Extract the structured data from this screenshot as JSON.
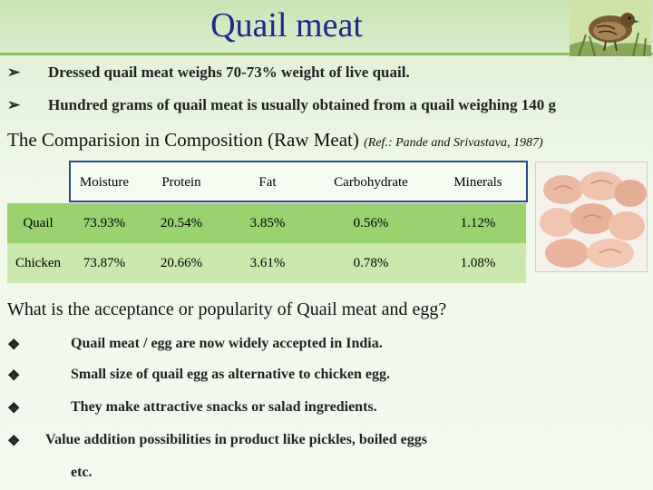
{
  "title": "Quail meat",
  "intro_bullets": [
    {
      "icon": "arrow-bullet-icon",
      "text": "Dressed quail meat weighs 70-73% weight of live quail."
    },
    {
      "icon": "arrow-bullet-icon",
      "text": "Hundred grams of quail meat is usually obtained from a quail weighing 140 g"
    }
  ],
  "comparison": {
    "heading": "The Comparision in Composition (Raw Meat)",
    "reference": "(Ref.: Pande and Srivastava, 1987)",
    "columns": [
      "Moisture",
      "Protein",
      "Fat",
      "Carbohydrate",
      "Minerals"
    ],
    "rows": [
      {
        "label": "Quail",
        "values": [
          "73.93%",
          "20.54%",
          "3.85%",
          "0.56%",
          "1.12%"
        ]
      },
      {
        "label": "Chicken",
        "values": [
          "73.87%",
          "20.66%",
          "3.61%",
          "0.78%",
          "1.08%"
        ]
      }
    ]
  },
  "question": "What is the acceptance or popularity of Quail meat and egg?",
  "answers": [
    {
      "icon": "diamond-bullet-icon",
      "text": "Quail meat / egg are now widely accepted in India."
    },
    {
      "icon": "diamond-bullet-icon",
      "text": "Small size of quail egg as alternative to chicken  egg."
    },
    {
      "icon": "diamond-bullet-icon",
      "text": "They make attractive snacks or salad ingredients."
    },
    {
      "icon": "diamond-bullet-icon",
      "text": "Value addition possibilities in product like pickles, boiled eggs"
    }
  ],
  "answers_continuation": "etc.",
  "colors": {
    "title": "#1a2a8a",
    "quail_row": "#9cd16f",
    "chicken_row": "#c9e8ad",
    "header_border": "#2b4a8a"
  }
}
